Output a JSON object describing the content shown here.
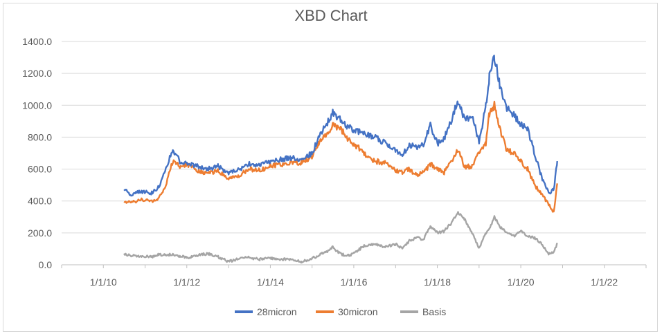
{
  "chart_data": {
    "type": "line",
    "title": "XBD Chart",
    "xlabel": "",
    "ylabel": "",
    "ylim": [
      0,
      1400
    ],
    "x_tick_labels": [
      "1/1/10",
      "1/1/12",
      "1/1/14",
      "1/1/16",
      "1/1/18",
      "1/1/20",
      "1/1/22"
    ],
    "x_tick_dates": [
      "2010-01-01",
      "2012-01-01",
      "2014-01-01",
      "2016-01-01",
      "2018-01-01",
      "2020-01-01",
      "2022-01-01"
    ],
    "y_tick_labels": [
      "0.0",
      "200.0",
      "400.0",
      "600.0",
      "800.0",
      "1000.0",
      "1200.0",
      "1400.0"
    ],
    "y_tick_values": [
      0,
      200,
      400,
      600,
      800,
      1000,
      1200,
      1400
    ],
    "xlim": [
      "2009-01-01",
      "2023-01-01"
    ],
    "grid": "horizontal",
    "legend_position": "bottom",
    "series": [
      {
        "name": "28micron",
        "color": "#4472c4",
        "points": [
          [
            "2010-07-01",
            470
          ],
          [
            "2010-09-01",
            440
          ],
          [
            "2010-12-01",
            460
          ],
          [
            "2011-03-01",
            450
          ],
          [
            "2011-05-01",
            490
          ],
          [
            "2011-07-01",
            600
          ],
          [
            "2011-09-01",
            720
          ],
          [
            "2011-11-01",
            650
          ],
          [
            "2012-01-01",
            640
          ],
          [
            "2012-04-01",
            620
          ],
          [
            "2012-07-01",
            600
          ],
          [
            "2012-10-01",
            620
          ],
          [
            "2013-01-01",
            570
          ],
          [
            "2013-04-01",
            600
          ],
          [
            "2013-07-01",
            630
          ],
          [
            "2013-10-01",
            620
          ],
          [
            "2014-01-01",
            650
          ],
          [
            "2014-04-01",
            660
          ],
          [
            "2014-07-01",
            670
          ],
          [
            "2014-10-01",
            660
          ],
          [
            "2015-01-01",
            700
          ],
          [
            "2015-03-01",
            800
          ],
          [
            "2015-05-01",
            870
          ],
          [
            "2015-07-01",
            950
          ],
          [
            "2015-09-01",
            920
          ],
          [
            "2015-11-01",
            870
          ],
          [
            "2016-01-01",
            840
          ],
          [
            "2016-04-01",
            830
          ],
          [
            "2016-07-01",
            800
          ],
          [
            "2016-10-01",
            760
          ],
          [
            "2017-01-01",
            720
          ],
          [
            "2017-03-01",
            690
          ],
          [
            "2017-05-01",
            750
          ],
          [
            "2017-07-01",
            740
          ],
          [
            "2017-09-01",
            750
          ],
          [
            "2017-11-01",
            880
          ],
          [
            "2018-01-01",
            760
          ],
          [
            "2018-03-01",
            790
          ],
          [
            "2018-05-01",
            900
          ],
          [
            "2018-07-01",
            1030
          ],
          [
            "2018-09-01",
            900
          ],
          [
            "2018-11-01",
            950
          ],
          [
            "2019-01-01",
            760
          ],
          [
            "2019-03-01",
            1000
          ],
          [
            "2019-04-01",
            1180
          ],
          [
            "2019-05-15",
            1310
          ],
          [
            "2019-07-01",
            1120
          ],
          [
            "2019-09-01",
            980
          ],
          [
            "2019-11-01",
            940
          ],
          [
            "2020-01-01",
            880
          ],
          [
            "2020-03-01",
            850
          ],
          [
            "2020-05-01",
            700
          ],
          [
            "2020-07-01",
            550
          ],
          [
            "2020-09-01",
            450
          ],
          [
            "2020-10-15",
            470
          ],
          [
            "2020-11-15",
            650
          ]
        ]
      },
      {
        "name": "30micron",
        "color": "#ed7d31",
        "points": [
          [
            "2010-07-01",
            400
          ],
          [
            "2010-09-01",
            390
          ],
          [
            "2010-12-01",
            410
          ],
          [
            "2011-03-01",
            400
          ],
          [
            "2011-05-01",
            420
          ],
          [
            "2011-07-01",
            500
          ],
          [
            "2011-09-01",
            650
          ],
          [
            "2011-11-01",
            620
          ],
          [
            "2012-01-01",
            630
          ],
          [
            "2012-04-01",
            590
          ],
          [
            "2012-07-01",
            570
          ],
          [
            "2012-10-01",
            590
          ],
          [
            "2013-01-01",
            540
          ],
          [
            "2013-04-01",
            560
          ],
          [
            "2013-07-01",
            600
          ],
          [
            "2013-10-01",
            590
          ],
          [
            "2014-01-01",
            620
          ],
          [
            "2014-04-01",
            630
          ],
          [
            "2014-07-01",
            640
          ],
          [
            "2014-10-01",
            640
          ],
          [
            "2015-01-01",
            680
          ],
          [
            "2015-03-01",
            760
          ],
          [
            "2015-05-01",
            820
          ],
          [
            "2015-07-01",
            870
          ],
          [
            "2015-09-01",
            860
          ],
          [
            "2015-11-01",
            800
          ],
          [
            "2016-01-01",
            760
          ],
          [
            "2016-04-01",
            700
          ],
          [
            "2016-07-01",
            650
          ],
          [
            "2016-10-01",
            640
          ],
          [
            "2017-01-01",
            590
          ],
          [
            "2017-03-01",
            580
          ],
          [
            "2017-05-01",
            600
          ],
          [
            "2017-07-01",
            560
          ],
          [
            "2017-09-01",
            580
          ],
          [
            "2017-11-01",
            630
          ],
          [
            "2018-01-01",
            600
          ],
          [
            "2018-03-01",
            580
          ],
          [
            "2018-05-01",
            640
          ],
          [
            "2018-07-01",
            720
          ],
          [
            "2018-09-01",
            610
          ],
          [
            "2018-11-01",
            620
          ],
          [
            "2019-01-01",
            700
          ],
          [
            "2019-03-01",
            760
          ],
          [
            "2019-04-01",
            950
          ],
          [
            "2019-05-15",
            1000
          ],
          [
            "2019-07-01",
            850
          ],
          [
            "2019-09-01",
            720
          ],
          [
            "2019-11-01",
            700
          ],
          [
            "2020-01-01",
            650
          ],
          [
            "2020-03-01",
            600
          ],
          [
            "2020-05-01",
            500
          ],
          [
            "2020-07-01",
            440
          ],
          [
            "2020-09-01",
            380
          ],
          [
            "2020-10-15",
            330
          ],
          [
            "2020-11-15",
            510
          ]
        ]
      },
      {
        "name": "Basis",
        "color": "#a5a5a5",
        "points": [
          [
            "2010-07-01",
            70
          ],
          [
            "2010-09-01",
            55
          ],
          [
            "2010-12-01",
            55
          ],
          [
            "2011-03-01",
            50
          ],
          [
            "2011-05-01",
            65
          ],
          [
            "2011-07-01",
            60
          ],
          [
            "2011-09-01",
            65
          ],
          [
            "2011-11-01",
            55
          ],
          [
            "2012-01-01",
            45
          ],
          [
            "2012-04-01",
            60
          ],
          [
            "2012-07-01",
            70
          ],
          [
            "2012-10-01",
            50
          ],
          [
            "2013-01-01",
            20
          ],
          [
            "2013-04-01",
            40
          ],
          [
            "2013-07-01",
            45
          ],
          [
            "2013-10-01",
            35
          ],
          [
            "2014-01-01",
            40
          ],
          [
            "2014-04-01",
            35
          ],
          [
            "2014-07-01",
            35
          ],
          [
            "2014-10-01",
            20
          ],
          [
            "2015-01-01",
            40
          ],
          [
            "2015-03-01",
            60
          ],
          [
            "2015-05-01",
            80
          ],
          [
            "2015-07-01",
            110
          ],
          [
            "2015-09-01",
            70
          ],
          [
            "2015-11-01",
            55
          ],
          [
            "2016-01-01",
            70
          ],
          [
            "2016-04-01",
            120
          ],
          [
            "2016-07-01",
            130
          ],
          [
            "2016-10-01",
            110
          ],
          [
            "2017-01-01",
            130
          ],
          [
            "2017-03-01",
            100
          ],
          [
            "2017-05-01",
            150
          ],
          [
            "2017-07-01",
            170
          ],
          [
            "2017-09-01",
            160
          ],
          [
            "2017-11-01",
            240
          ],
          [
            "2018-01-01",
            200
          ],
          [
            "2018-03-01",
            210
          ],
          [
            "2018-05-01",
            260
          ],
          [
            "2018-07-01",
            330
          ],
          [
            "2018-09-01",
            280
          ],
          [
            "2018-11-01",
            200
          ],
          [
            "2019-01-01",
            100
          ],
          [
            "2019-03-01",
            200
          ],
          [
            "2019-04-01",
            220
          ],
          [
            "2019-05-15",
            300
          ],
          [
            "2019-07-01",
            240
          ],
          [
            "2019-09-01",
            200
          ],
          [
            "2019-11-01",
            180
          ],
          [
            "2020-01-01",
            210
          ],
          [
            "2020-03-01",
            180
          ],
          [
            "2020-05-01",
            170
          ],
          [
            "2020-07-01",
            130
          ],
          [
            "2020-09-01",
            70
          ],
          [
            "2020-10-15",
            80
          ],
          [
            "2020-11-15",
            130
          ]
        ]
      }
    ]
  }
}
